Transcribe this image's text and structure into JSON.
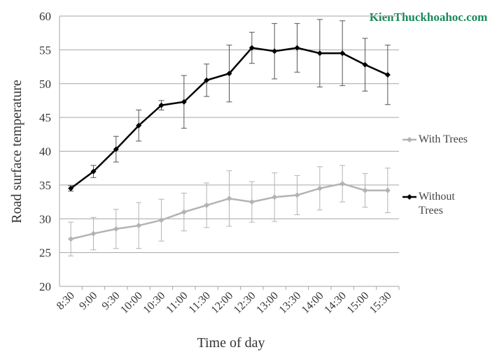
{
  "chart_data": {
    "type": "line",
    "watermark": "KienThuckhoahoc.com",
    "xlabel": "Time of day",
    "ylabel": "Road surface temperature",
    "categories": [
      "8:30",
      "9:00",
      "9:30",
      "10:00",
      "10:30",
      "11:00",
      "11:30",
      "12:00",
      "12:30",
      "13:00",
      "13:30",
      "14:00",
      "14:30",
      "15:00",
      "15:30"
    ],
    "series": [
      {
        "name": "With Trees",
        "color": "#b3b3b3",
        "values": [
          27,
          27.8,
          28.5,
          29,
          29.8,
          31,
          32,
          33,
          32.5,
          33.2,
          33.5,
          34.5,
          35.2,
          34.2,
          34.2
        ],
        "errors": [
          2.5,
          2.4,
          2.9,
          3.4,
          3.1,
          2.8,
          3.3,
          4.1,
          3.0,
          3.6,
          2.9,
          3.2,
          2.7,
          2.5,
          3.3
        ]
      },
      {
        "name": "Without Trees",
        "color": "#000000",
        "values": [
          34.5,
          37,
          40.3,
          43.8,
          46.8,
          47.3,
          50.5,
          51.5,
          55.3,
          54.8,
          55.3,
          54.5,
          54.5,
          52.8,
          51.3
        ],
        "errors": [
          0.4,
          0.9,
          1.9,
          2.3,
          0.7,
          3.9,
          2.4,
          4.2,
          2.3,
          4.1,
          3.6,
          5.0,
          4.8,
          3.9,
          4.4
        ]
      }
    ],
    "ylim": [
      20,
      60
    ],
    "yticks": [
      20,
      25,
      30,
      35,
      40,
      45,
      50,
      55,
      60
    ],
    "grid": true,
    "legend": "right"
  }
}
